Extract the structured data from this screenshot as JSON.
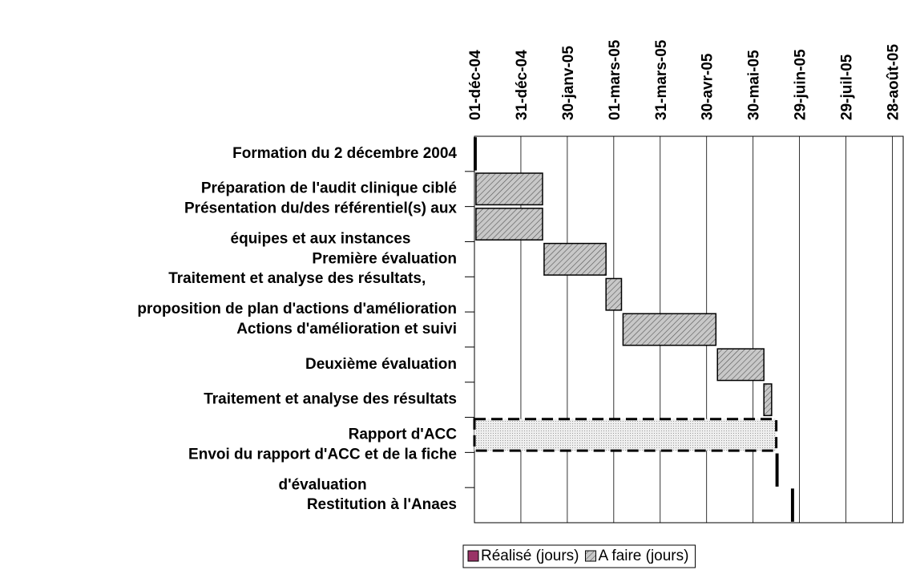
{
  "chart_data": {
    "type": "gantt",
    "categories": [
      "Formation du 2 décembre 2004",
      "Préparation de l'audit clinique ciblé",
      "Présentation du/des référentiel(s) aux\néquipes et aux instances",
      "Première évaluation",
      "Traitement et analyse des résultats,\nproposition de plan d'actions d'amélioration",
      "Actions d'amélioration et suivi",
      "Deuxième évaluation",
      "Traitement et analyse des résultats",
      "Rapport d'ACC",
      "Envoi du rapport d'ACC et de la fiche\nd'évaluation",
      "Restitution à l'Anaes"
    ],
    "start": [
      38322,
      38323,
      38323,
      38367,
      38407,
      38418,
      38479,
      38509,
      38322,
      38517,
      38527
    ],
    "series": [
      {
        "name": "Réalisé (jours)",
        "color": "#993366",
        "values": [
          1,
          0,
          0,
          0,
          0,
          0,
          0,
          0,
          0,
          1,
          1
        ]
      },
      {
        "name": "A faire (jours)",
        "color": "#c0c0c0",
        "values": [
          0,
          43,
          43,
          40,
          10,
          60,
          30,
          5,
          195,
          0,
          0
        ],
        "styles": [
          "hatch",
          "hatch",
          "hatch",
          "hatch",
          "hatch",
          "hatch",
          "hatch",
          "hatch",
          "dotted",
          "hatch",
          "hatch"
        ]
      }
    ],
    "xlim": [
      38322,
      38599
    ],
    "xticks": [
      {
        "value": 38322,
        "label": "01-déc-04"
      },
      {
        "value": 38352,
        "label": "31-déc-04"
      },
      {
        "value": 38382,
        "label": "30-janv-05"
      },
      {
        "value": 38412,
        "label": "01-mars-05"
      },
      {
        "value": 38442,
        "label": "31-mars-05"
      },
      {
        "value": 38472,
        "label": "30-avr-05"
      },
      {
        "value": 38502,
        "label": "30-mai-05"
      },
      {
        "value": 38532,
        "label": "29-juin-05"
      },
      {
        "value": 38562,
        "label": "29-juil-05"
      },
      {
        "value": 38592,
        "label": "28-août-05"
      }
    ],
    "grid": true,
    "legend": "bottom"
  }
}
